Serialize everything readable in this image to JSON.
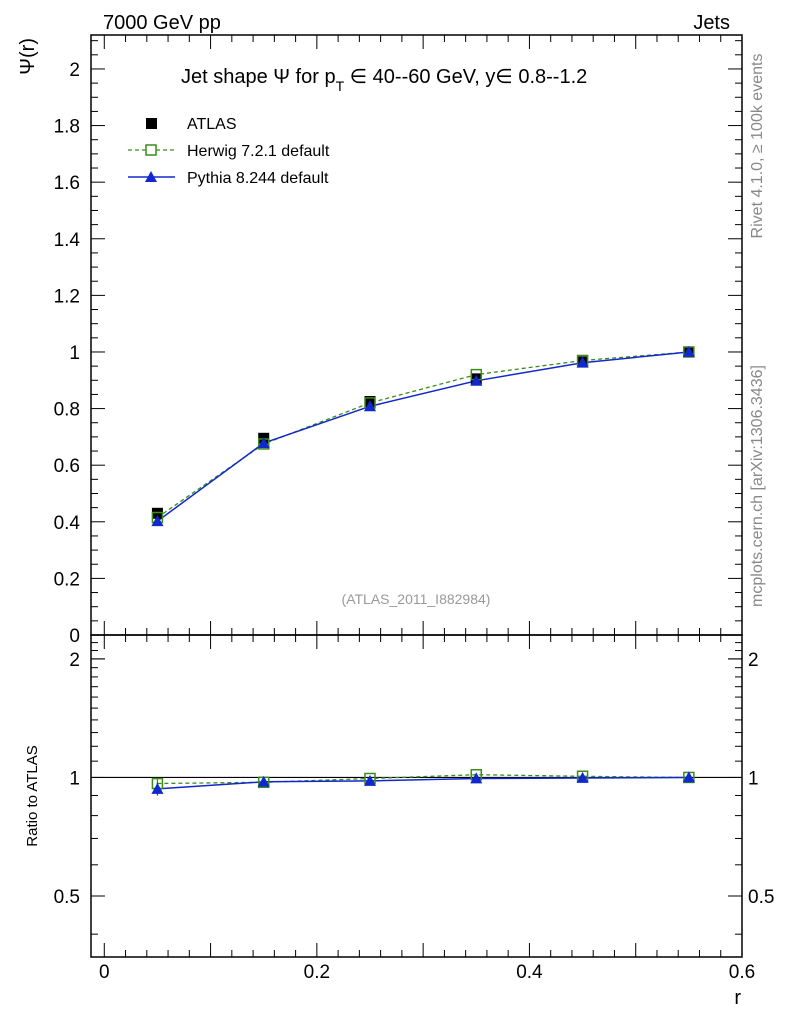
{
  "header": {
    "left": "7000 GeV pp",
    "right": "Jets"
  },
  "side": {
    "rivet": "Rivet 4.1.0, ≥ 100k events",
    "mcplots": "mcplots.cern.ch [arXiv:1306.3436]"
  },
  "chart_data": {
    "type": "line",
    "title": "Jet shape Ψ for p_T ∈ 40--60 GeV, y∈ 0.8--1.2",
    "title_parts": {
      "prefix": "Jet shape Ψ for p",
      "sub": "T",
      "suffix": " ∈ 40--60 GeV, y∈ 0.8--1.2"
    },
    "watermark": "(ATLAS_2011_I882984)",
    "xlabel": "r",
    "ylabel": "Ψ(r)",
    "ratio_ylabel": "Ratio to ATLAS",
    "xlim": [
      -0.0125,
      0.6
    ],
    "ylim": [
      0,
      2.12
    ],
    "ratio_ylim": [
      0.35,
      2.3
    ],
    "x_ticks": [
      0,
      0.2,
      0.4,
      0.6
    ],
    "x_tick_labels": [
      "0",
      "0.2",
      "0.4",
      "0.6"
    ],
    "y_ticks": [
      0,
      0.2,
      0.4,
      0.6,
      0.8,
      1,
      1.2,
      1.4,
      1.6,
      1.8,
      2
    ],
    "y_tick_labels": [
      "0",
      "0.2",
      "0.4",
      "0.6",
      "0.8",
      "1",
      "1.2",
      "1.4",
      "1.6",
      "1.8",
      "2"
    ],
    "ratio_ticks": [
      0.5,
      1,
      2
    ],
    "ratio_tick_labels": [
      "0.5",
      "1",
      "2"
    ],
    "x": [
      0.05,
      0.15,
      0.25,
      0.35,
      0.45,
      0.55
    ],
    "series": [
      {
        "name": "ATLAS",
        "style": "data",
        "color": "#000000",
        "values": [
          0.43,
          0.695,
          0.825,
          0.905,
          0.965,
          1.0
        ],
        "errors": [
          0.012,
          0.01,
          0.008,
          0.006,
          0.004,
          0.0
        ]
      },
      {
        "name": "Herwig 7.2.1 default",
        "style": "dashed-open-square",
        "color": "#3a8c1c",
        "values": [
          0.415,
          0.675,
          0.82,
          0.92,
          0.97,
          1.0
        ],
        "ratio": [
          0.965,
          0.972,
          0.994,
          1.016,
          1.007,
          1.0
        ],
        "ratio_errors": [
          0.06,
          0.01,
          0.01,
          0.01,
          0.01,
          0.0
        ]
      },
      {
        "name": "Pythia 8.244 default",
        "style": "solid-triangle",
        "color": "#1128cc",
        "values": [
          0.402,
          0.678,
          0.808,
          0.898,
          0.962,
          1.0
        ],
        "ratio": [
          0.935,
          0.975,
          0.98,
          0.994,
          0.997,
          1.0
        ],
        "ratio_errors": [
          0.07,
          0.01,
          0.01,
          0.01,
          0.01,
          0.0
        ]
      }
    ]
  }
}
